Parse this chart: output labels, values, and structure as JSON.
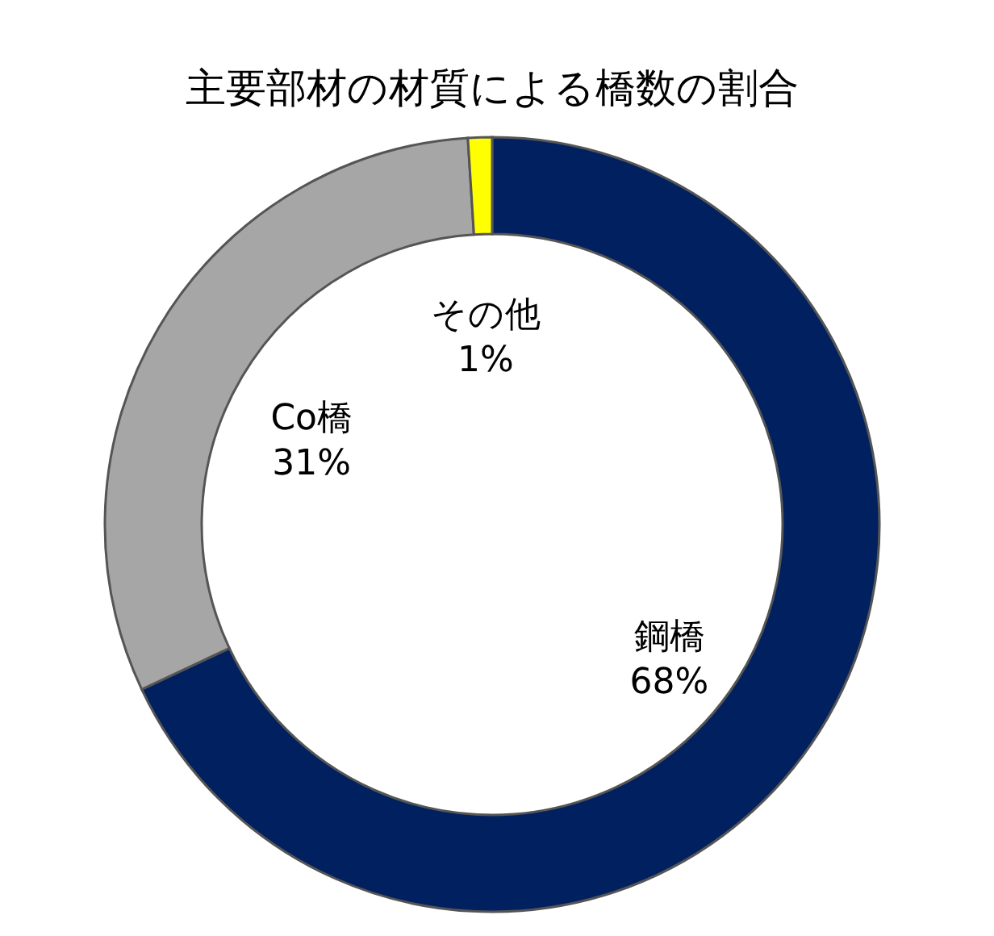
{
  "chart_data": {
    "type": "donut",
    "title": "主要部材の材質による橋数の割合",
    "categories": [
      "鋼橋",
      "Co橋",
      "その他"
    ],
    "values": [
      68,
      31,
      1
    ],
    "colors": [
      "#002060",
      "#a6a6a6",
      "#ffff00"
    ],
    "value_labels": [
      "68%",
      "31%",
      "1%"
    ],
    "legend": false
  }
}
